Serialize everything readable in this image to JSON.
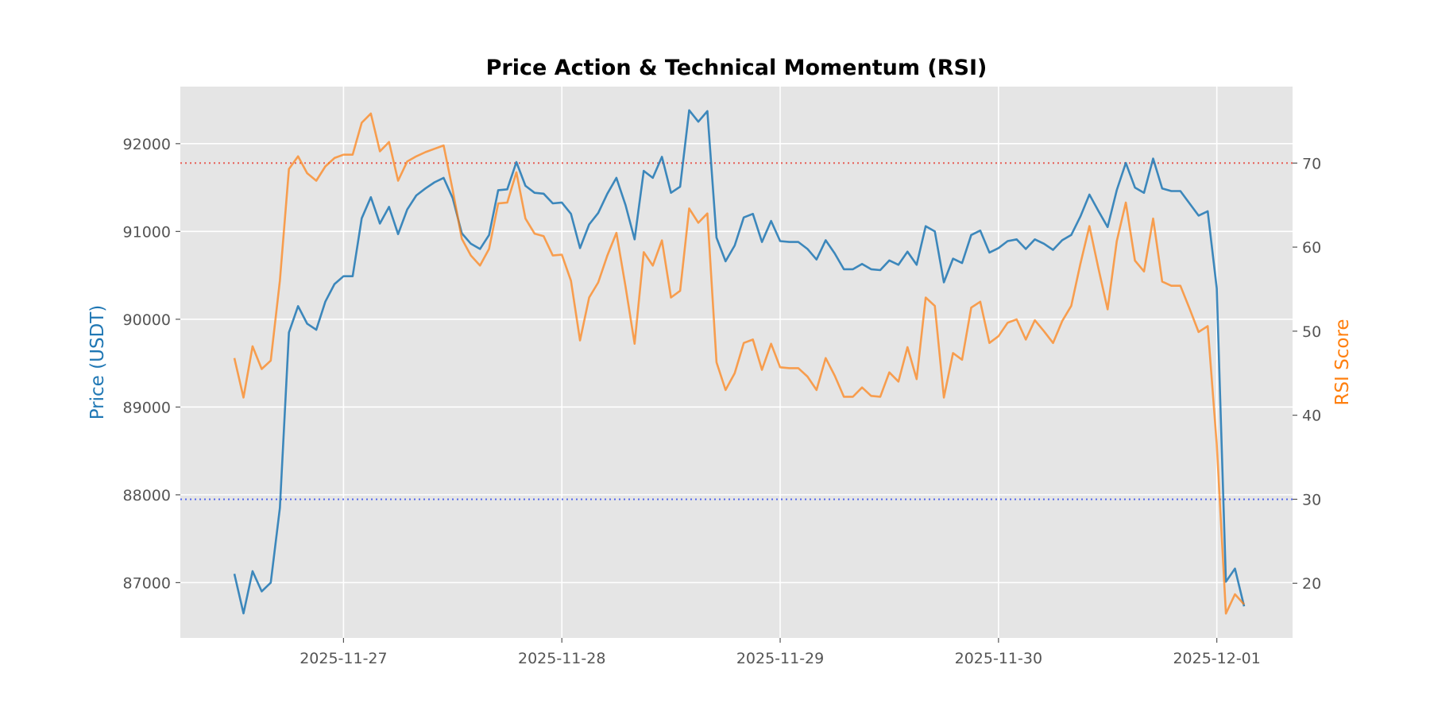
{
  "chart_data": {
    "type": "line",
    "title": "Price Action & Technical Momentum (RSI)",
    "ylabel": "Price (USDT)",
    "ylabel_right": "RSI Score",
    "x_tick_labels": [
      "2025-11-27",
      "2025-11-28",
      "2025-11-29",
      "2025-11-30",
      "2025-12-01"
    ],
    "y_ticks": [
      87000,
      88000,
      89000,
      90000,
      91000,
      92000
    ],
    "y2_ticks": [
      20,
      30,
      40,
      50,
      60,
      70
    ],
    "y_range": [
      86370,
      92650
    ],
    "y2_range": [
      13.5,
      79.1
    ],
    "x_start": "2025-11-26T12:00",
    "x_end": "2025-12-01T03:00",
    "x_step_hours": 1,
    "grid": true,
    "reference_lines": [
      {
        "value": 70,
        "axis": "right",
        "color": "#e8473e"
      },
      {
        "value": 30,
        "axis": "right",
        "color": "#3a50f0"
      }
    ],
    "series": [
      {
        "axis": "left",
        "color": "#1f77b4",
        "values": [
          87100,
          86650,
          87130,
          86900,
          87000,
          87850,
          89850,
          90150,
          89950,
          89880,
          90200,
          90400,
          90490,
          90490,
          91150,
          91390,
          91090,
          91280,
          90970,
          91250,
          91410,
          91490,
          91560,
          91610,
          91380,
          90980,
          90860,
          90800,
          90960,
          91470,
          91480,
          91790,
          91520,
          91440,
          91430,
          91320,
          91330,
          91200,
          90810,
          91080,
          91210,
          91430,
          91610,
          91300,
          90910,
          91690,
          91610,
          91850,
          91440,
          91510,
          92380,
          92250,
          92370,
          90930,
          90660,
          90840,
          91160,
          91200,
          90880,
          91120,
          90890,
          90880,
          90880,
          90800,
          90680,
          90900,
          90750,
          90570,
          90570,
          90630,
          90570,
          90560,
          90670,
          90620,
          90770,
          90620,
          91060,
          91000,
          90420,
          90690,
          90640,
          90960,
          91010,
          90760,
          90810,
          90890,
          90910,
          90800,
          90910,
          90860,
          90790,
          90900,
          90960,
          91170,
          91420,
          91230,
          91050,
          91470,
          91780,
          91500,
          91440,
          91830,
          91490,
          91460,
          91460,
          91320,
          91180,
          91230,
          90350,
          87010,
          87160,
          86730
        ]
      },
      {
        "axis": "right",
        "color": "#ff7f0e",
        "values": [
          46.8,
          42.1,
          48.2,
          45.5,
          46.5,
          56.0,
          69.3,
          70.8,
          68.8,
          67.9,
          69.6,
          70.6,
          71.0,
          71.0,
          74.8,
          75.9,
          71.4,
          72.5,
          67.9,
          70.2,
          70.8,
          71.3,
          71.7,
          72.1,
          66.8,
          61.0,
          59.0,
          57.8,
          59.8,
          65.2,
          65.3,
          68.9,
          63.4,
          61.6,
          61.3,
          59.0,
          59.1,
          56.0,
          48.9,
          54.0,
          55.8,
          59.0,
          61.7,
          55.3,
          48.5,
          59.4,
          57.8,
          60.8,
          54.0,
          54.8,
          64.6,
          62.9,
          64.0,
          46.3,
          43.0,
          45.0,
          48.6,
          49.0,
          45.4,
          48.5,
          45.7,
          45.6,
          45.6,
          44.6,
          43.0,
          46.8,
          44.7,
          42.2,
          42.2,
          43.3,
          42.3,
          42.2,
          45.1,
          44.0,
          48.1,
          44.3,
          54.0,
          53.0,
          42.1,
          47.4,
          46.6,
          52.8,
          53.5,
          48.6,
          49.4,
          51.0,
          51.4,
          49.0,
          51.3,
          50.0,
          48.6,
          51.2,
          53.0,
          58.0,
          62.5,
          57.4,
          52.6,
          60.7,
          65.3,
          58.4,
          57.1,
          63.4,
          55.9,
          55.4,
          55.4,
          52.7,
          49.9,
          50.6,
          36.5,
          16.4,
          18.7,
          17.5
        ]
      }
    ]
  }
}
